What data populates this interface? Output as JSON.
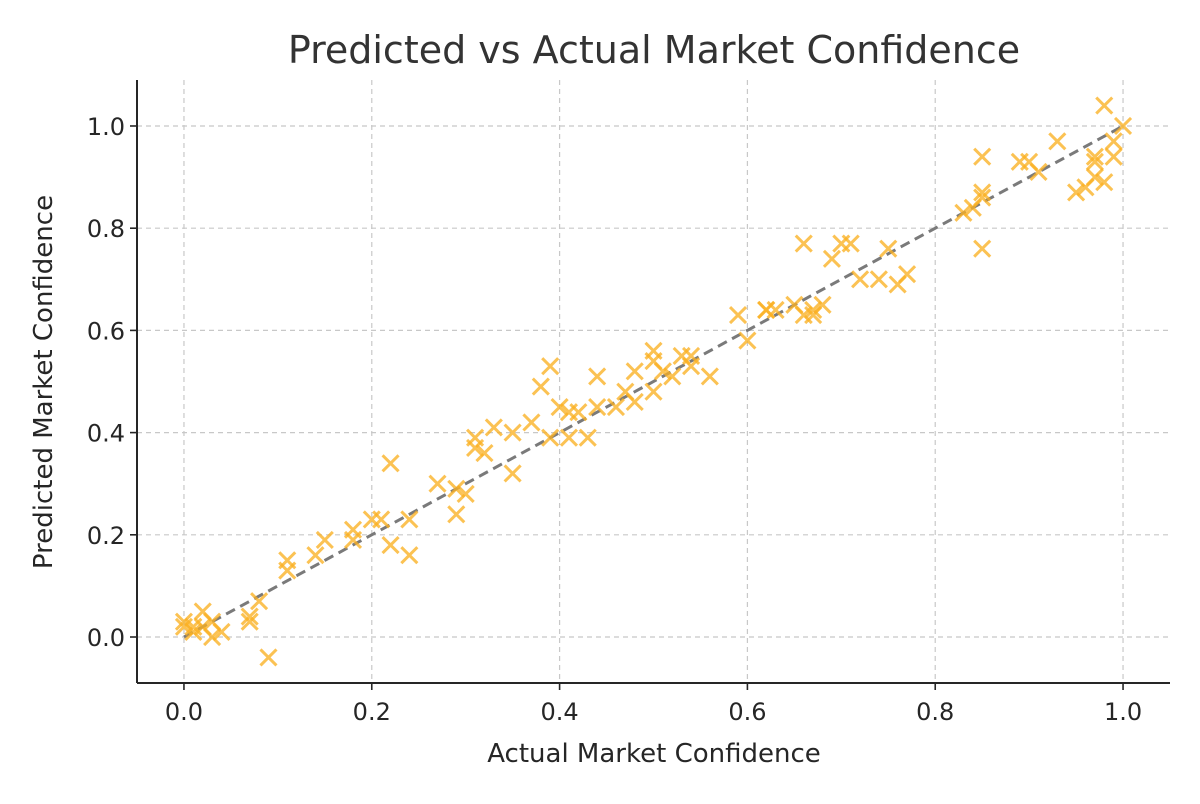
{
  "chart_data": {
    "type": "scatter",
    "title": "Predicted vs Actual Market Confidence",
    "xlabel": "Actual Market Confidence",
    "ylabel": "Predicted Market Confidence",
    "xlim": [
      -0.05,
      1.05
    ],
    "ylim": [
      -0.09,
      1.09
    ],
    "xticks": [
      0.0,
      0.2,
      0.4,
      0.6,
      0.8,
      1.0
    ],
    "yticks": [
      0.0,
      0.2,
      0.4,
      0.6,
      0.8,
      1.0
    ],
    "xtick_labels": [
      "0.0",
      "0.2",
      "0.4",
      "0.6",
      "0.8",
      "1.0"
    ],
    "ytick_labels": [
      "0.0",
      "0.2",
      "0.4",
      "0.6",
      "0.8",
      "1.0"
    ],
    "grid": true,
    "marker": "x",
    "point_color": "#FBB123",
    "reference_line": {
      "x": [
        0.0,
        1.0
      ],
      "y": [
        0.0,
        1.0
      ],
      "style": "dashed",
      "color": "#7A7A7A"
    },
    "points": [
      {
        "x": 0.0,
        "y": 0.02
      },
      {
        "x": 0.0,
        "y": 0.03
      },
      {
        "x": 0.01,
        "y": 0.02
      },
      {
        "x": 0.01,
        "y": 0.01
      },
      {
        "x": 0.02,
        "y": 0.05
      },
      {
        "x": 0.02,
        "y": 0.02
      },
      {
        "x": 0.03,
        "y": 0.0
      },
      {
        "x": 0.03,
        "y": 0.03
      },
      {
        "x": 0.04,
        "y": 0.01
      },
      {
        "x": 0.07,
        "y": 0.03
      },
      {
        "x": 0.07,
        "y": 0.04
      },
      {
        "x": 0.08,
        "y": 0.07
      },
      {
        "x": 0.09,
        "y": -0.04
      },
      {
        "x": 0.11,
        "y": 0.13
      },
      {
        "x": 0.11,
        "y": 0.15
      },
      {
        "x": 0.14,
        "y": 0.16
      },
      {
        "x": 0.15,
        "y": 0.19
      },
      {
        "x": 0.18,
        "y": 0.21
      },
      {
        "x": 0.18,
        "y": 0.19
      },
      {
        "x": 0.2,
        "y": 0.23
      },
      {
        "x": 0.21,
        "y": 0.23
      },
      {
        "x": 0.22,
        "y": 0.34
      },
      {
        "x": 0.22,
        "y": 0.18
      },
      {
        "x": 0.24,
        "y": 0.23
      },
      {
        "x": 0.24,
        "y": 0.16
      },
      {
        "x": 0.27,
        "y": 0.3
      },
      {
        "x": 0.29,
        "y": 0.24
      },
      {
        "x": 0.29,
        "y": 0.29
      },
      {
        "x": 0.3,
        "y": 0.28
      },
      {
        "x": 0.31,
        "y": 0.39
      },
      {
        "x": 0.31,
        "y": 0.37
      },
      {
        "x": 0.32,
        "y": 0.36
      },
      {
        "x": 0.33,
        "y": 0.41
      },
      {
        "x": 0.35,
        "y": 0.32
      },
      {
        "x": 0.35,
        "y": 0.4
      },
      {
        "x": 0.37,
        "y": 0.42
      },
      {
        "x": 0.38,
        "y": 0.49
      },
      {
        "x": 0.39,
        "y": 0.53
      },
      {
        "x": 0.39,
        "y": 0.39
      },
      {
        "x": 0.4,
        "y": 0.45
      },
      {
        "x": 0.41,
        "y": 0.44
      },
      {
        "x": 0.41,
        "y": 0.39
      },
      {
        "x": 0.42,
        "y": 0.44
      },
      {
        "x": 0.43,
        "y": 0.39
      },
      {
        "x": 0.44,
        "y": 0.45
      },
      {
        "x": 0.44,
        "y": 0.51
      },
      {
        "x": 0.46,
        "y": 0.45
      },
      {
        "x": 0.47,
        "y": 0.48
      },
      {
        "x": 0.48,
        "y": 0.52
      },
      {
        "x": 0.48,
        "y": 0.46
      },
      {
        "x": 0.5,
        "y": 0.54
      },
      {
        "x": 0.5,
        "y": 0.56
      },
      {
        "x": 0.5,
        "y": 0.48
      },
      {
        "x": 0.51,
        "y": 0.52
      },
      {
        "x": 0.52,
        "y": 0.51
      },
      {
        "x": 0.53,
        "y": 0.55
      },
      {
        "x": 0.54,
        "y": 0.53
      },
      {
        "x": 0.54,
        "y": 0.55
      },
      {
        "x": 0.56,
        "y": 0.51
      },
      {
        "x": 0.59,
        "y": 0.63
      },
      {
        "x": 0.6,
        "y": 0.58
      },
      {
        "x": 0.62,
        "y": 0.64
      },
      {
        "x": 0.62,
        "y": 0.64
      },
      {
        "x": 0.63,
        "y": 0.64
      },
      {
        "x": 0.65,
        "y": 0.65
      },
      {
        "x": 0.66,
        "y": 0.63
      },
      {
        "x": 0.66,
        "y": 0.77
      },
      {
        "x": 0.67,
        "y": 0.63
      },
      {
        "x": 0.67,
        "y": 0.64
      },
      {
        "x": 0.68,
        "y": 0.65
      },
      {
        "x": 0.69,
        "y": 0.74
      },
      {
        "x": 0.7,
        "y": 0.77
      },
      {
        "x": 0.71,
        "y": 0.77
      },
      {
        "x": 0.72,
        "y": 0.7
      },
      {
        "x": 0.74,
        "y": 0.7
      },
      {
        "x": 0.75,
        "y": 0.76
      },
      {
        "x": 0.76,
        "y": 0.69
      },
      {
        "x": 0.77,
        "y": 0.71
      },
      {
        "x": 0.83,
        "y": 0.83
      },
      {
        "x": 0.84,
        "y": 0.84
      },
      {
        "x": 0.85,
        "y": 0.94
      },
      {
        "x": 0.85,
        "y": 0.76
      },
      {
        "x": 0.85,
        "y": 0.86
      },
      {
        "x": 0.85,
        "y": 0.87
      },
      {
        "x": 0.89,
        "y": 0.93
      },
      {
        "x": 0.9,
        "y": 0.93
      },
      {
        "x": 0.91,
        "y": 0.91
      },
      {
        "x": 0.93,
        "y": 0.97
      },
      {
        "x": 0.95,
        "y": 0.87
      },
      {
        "x": 0.96,
        "y": 0.88
      },
      {
        "x": 0.97,
        "y": 0.93
      },
      {
        "x": 0.97,
        "y": 0.94
      },
      {
        "x": 0.97,
        "y": 0.9
      },
      {
        "x": 0.98,
        "y": 0.89
      },
      {
        "x": 0.98,
        "y": 1.04
      },
      {
        "x": 0.99,
        "y": 0.97
      },
      {
        "x": 0.99,
        "y": 0.94
      },
      {
        "x": 1.0,
        "y": 1.0
      }
    ]
  }
}
